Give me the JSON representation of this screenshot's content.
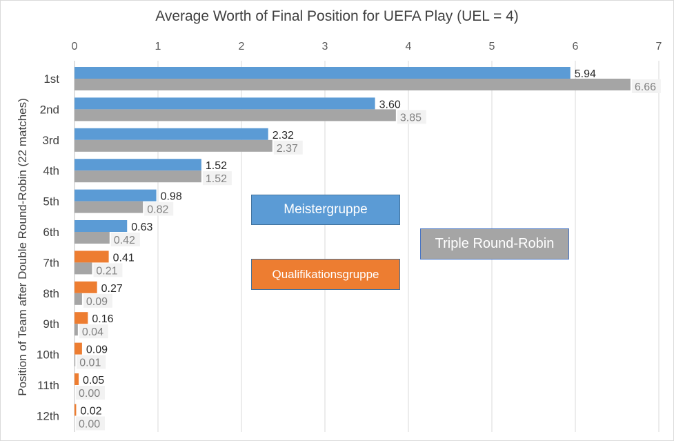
{
  "chart_data": {
    "type": "bar",
    "orientation": "horizontal",
    "title": "Average Worth of Final Position for UEFA Play (UEL = 4)",
    "ylabel": "Position of Team after Double Round-Robin (22 matches)",
    "xlabel": "",
    "xlim": [
      0,
      7
    ],
    "x_ticks": [
      "0",
      "1",
      "2",
      "3",
      "4",
      "5",
      "6",
      "7"
    ],
    "x_axis_position": "top",
    "grid": true,
    "categories": [
      "1st",
      "2nd",
      "3rd",
      "4th",
      "5th",
      "6th",
      "7th",
      "8th",
      "9th",
      "10th",
      "11th",
      "12th"
    ],
    "series": [
      {
        "values": [
          5.94,
          3.6,
          2.32,
          1.52,
          0.98,
          0.63,
          0.41,
          0.27,
          0.16,
          0.09,
          0.05,
          0.02
        ],
        "labels": [
          "5.94",
          "3.60",
          "2.32",
          "1.52",
          "0.98",
          "0.63",
          "0.41",
          "0.27",
          "0.16",
          "0.09",
          "0.05",
          "0.02"
        ],
        "colors": [
          "#5b9bd5",
          "#5b9bd5",
          "#5b9bd5",
          "#5b9bd5",
          "#5b9bd5",
          "#5b9bd5",
          "#ed7d31",
          "#ed7d31",
          "#ed7d31",
          "#ed7d31",
          "#ed7d31",
          "#ed7d31"
        ]
      },
      {
        "name": "Triple Round-Robin",
        "values": [
          6.66,
          3.85,
          2.37,
          1.52,
          0.82,
          0.42,
          0.21,
          0.09,
          0.04,
          0.01,
          0.0,
          0.0
        ],
        "labels": [
          "6.66",
          "3.85",
          "2.37",
          "1.52",
          "0.82",
          "0.42",
          "0.21",
          "0.09",
          "0.04",
          "0.01",
          "0.00",
          "0.00"
        ],
        "color": "#a5a5a5"
      }
    ],
    "legend": [
      {
        "label": "Meistergruppe",
        "color": "#5b9bd5"
      },
      {
        "label": "Triple Round-Robin",
        "color": "#a5a5a5"
      },
      {
        "label": "Qualifikationsgruppe",
        "color": "#ed7d31"
      }
    ]
  }
}
